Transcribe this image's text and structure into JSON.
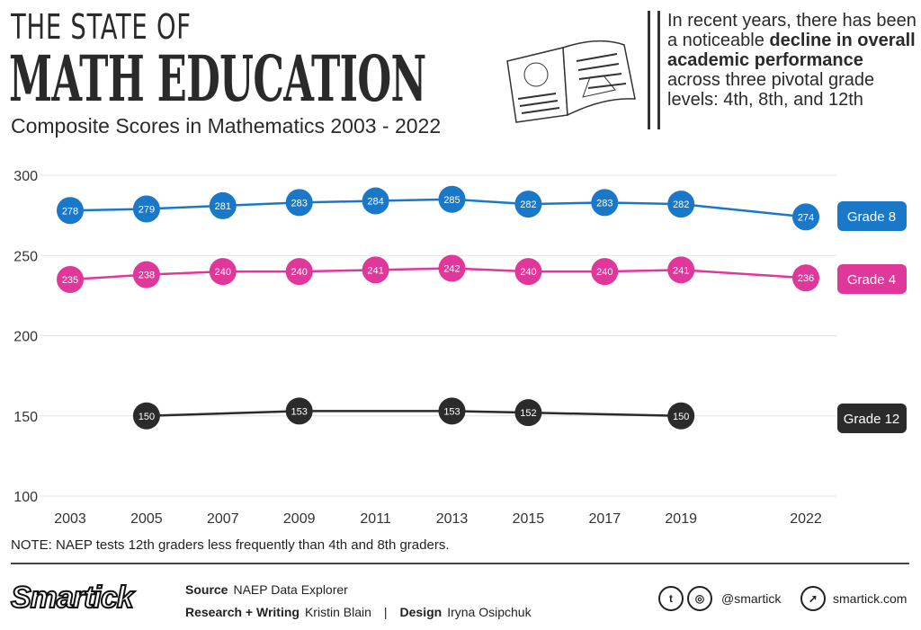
{
  "header": {
    "title_line1": "THE STATE OF",
    "title_line2": "MATH EDUCATION",
    "subtitle": "Composite Scores in Mathematics 2003 - 2022"
  },
  "description": {
    "p1": "In recent years, there has been a noticeable ",
    "bold1": "decline in overall academic performance",
    "p2": " across three pivotal grade levels: 4th, 8th, and 12th"
  },
  "note": "NOTE: NAEP tests 12th graders less frequently than 4th and 8th graders.",
  "footer": {
    "logo": "Smartick",
    "source_label": "Source",
    "source": "NAEP Data Explorer",
    "research_label": "Research + Writing",
    "research": "Kristin Blain",
    "sep": "|",
    "design_label": "Design",
    "design": "Iryna Osipchuk",
    "social": "@smartick",
    "site": "smartick.com",
    "icons": [
      "twitter-icon",
      "instagram-icon",
      "cursor-icon"
    ]
  },
  "chart_data": {
    "type": "line",
    "categories": [
      "2003",
      "2005",
      "2007",
      "2009",
      "2011",
      "2013",
      "2015",
      "2017",
      "2019",
      "2022"
    ],
    "ylim": [
      100,
      300
    ],
    "yticks": [
      100,
      150,
      200,
      250,
      300
    ],
    "grid": true,
    "legend": "right",
    "series": [
      {
        "name": "Grade 8",
        "color": "#1a78c8",
        "values": [
          278,
          279,
          281,
          283,
          284,
          285,
          282,
          283,
          282,
          274
        ]
      },
      {
        "name": "Grade 4",
        "color": "#e0389a",
        "values": [
          235,
          238,
          240,
          240,
          241,
          242,
          240,
          240,
          241,
          236
        ]
      },
      {
        "name": "Grade 12",
        "color": "#2b2b2b",
        "values": [
          null,
          150,
          null,
          153,
          null,
          153,
          152,
          null,
          150,
          null
        ]
      }
    ]
  }
}
